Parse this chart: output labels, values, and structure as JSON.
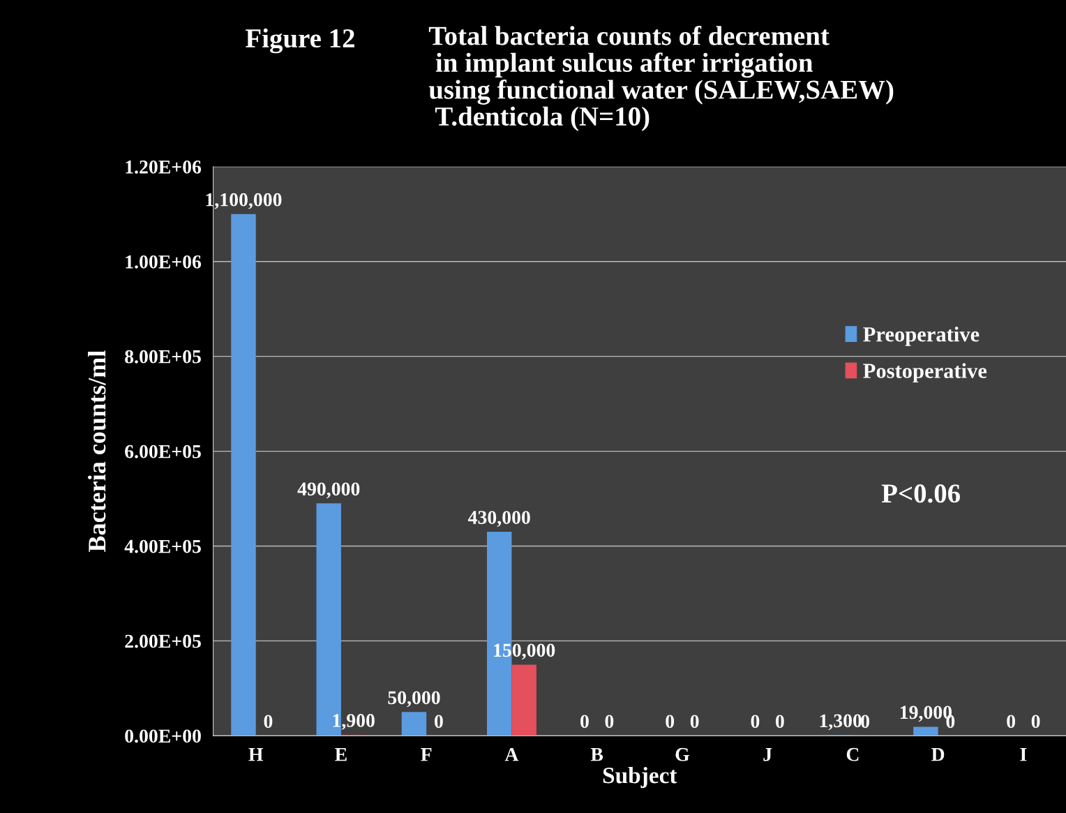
{
  "chart_data": {
    "type": "bar",
    "title": "Figure 12",
    "subtitle": "Total bacteria counts of decrement\n in implant sulcus after irrigation\nusing functional water (SALEW,SAEW)\n T.denticola (N=10)",
    "xlabel": "Subject",
    "ylabel": "Bacteria counts/ml",
    "categories": [
      "H",
      "E",
      "F",
      "A",
      "B",
      "G",
      "J",
      "C",
      "D",
      "I"
    ],
    "series": [
      {
        "name": "Preoperative",
        "color": "#5b9be0",
        "values": [
          1100000,
          490000,
          50000,
          430000,
          0,
          0,
          0,
          1300,
          19000,
          0
        ],
        "value_labels": [
          "1,100,000",
          "490,000",
          "50,000",
          "430,000",
          "0",
          "0",
          "0",
          "1,300",
          "19,000",
          "0"
        ]
      },
      {
        "name": "Postoperative",
        "color": "#e4505c",
        "values": [
          0,
          1900,
          0,
          150000,
          0,
          0,
          0,
          0,
          0,
          0
        ],
        "value_labels": [
          "0",
          "1,900",
          "0",
          "150,000",
          "0",
          "0",
          "0",
          "0",
          "0",
          "0"
        ]
      }
    ],
    "ylim": [
      0,
      1200000
    ],
    "yticks": [
      {
        "value": 0,
        "label": "0.00E+00"
      },
      {
        "value": 200000,
        "label": "2.00E+05"
      },
      {
        "value": 400000,
        "label": "4.00E+05"
      },
      {
        "value": 600000,
        "label": "6.00E+05"
      },
      {
        "value": 800000,
        "label": "8.00E+05"
      },
      {
        "value": 1000000,
        "label": "1.00E+06"
      },
      {
        "value": 1200000,
        "label": "1.20E+06"
      }
    ],
    "grid": "y",
    "legend": "right",
    "annotations": [
      "P<0.06"
    ]
  }
}
